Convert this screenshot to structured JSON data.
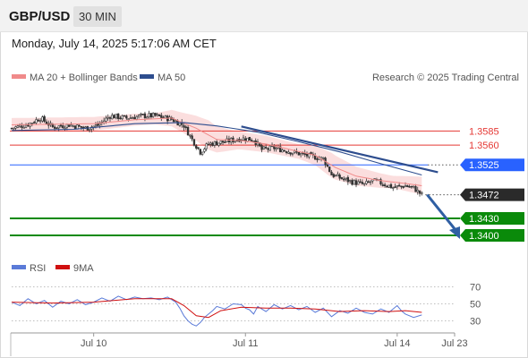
{
  "header": {
    "symbol": "GBP/USD",
    "timeframe": "30 MIN",
    "datetime": "Monday, July 14, 2025 5:17:06 AM CET"
  },
  "colors": {
    "bollinger": "#f08a8a",
    "bollinger_fill": "#fbdede",
    "ma50": "#2d4d8e",
    "resistance": "#e53935",
    "pivot": "#2962ff",
    "support": "#0a8a0a",
    "current": "#2a2a2a",
    "rsi": "#5b7bd8",
    "rsi_ma": "#d01010",
    "candle_up": "#444444",
    "candle_down": "#444444",
    "arrow": "#2f5fa3"
  },
  "chart_data": [
    {
      "type": "candlestick",
      "legend": {
        "ma20": "MA 20 + Bollinger Bands",
        "ma50": "MA 50"
      },
      "credit": "Research © 2025 Trading Central",
      "ylim": [
        1.3365,
        1.3665
      ],
      "x_ticks": [
        "Jul 10",
        "Jul 11",
        "Jul 14",
        "Jul 23"
      ],
      "x_tick_index": [
        40,
        114,
        188,
        216
      ],
      "bars_count": 216,
      "levels": [
        {
          "label": "1.3585",
          "value": 1.3585,
          "kind": "resistance"
        },
        {
          "label": "1.3560",
          "value": 1.356,
          "kind": "resistance"
        },
        {
          "label": "1.3525",
          "value": 1.3525,
          "kind": "pivot"
        },
        {
          "label": "1.3472",
          "value": 1.3472,
          "kind": "current"
        },
        {
          "label": "1.3430",
          "value": 1.343,
          "kind": "support"
        },
        {
          "label": "1.3400",
          "value": 1.34,
          "kind": "support"
        }
      ],
      "trendline": {
        "from": [
          112,
          1.3593
        ],
        "to": [
          200,
          1.3512
        ]
      },
      "forecast_arrow": {
        "from": [
          200,
          1.3472
        ],
        "to": [
          216,
          1.34
        ]
      },
      "price_path": [
        [
          0,
          1.359
        ],
        [
          8,
          1.3597
        ],
        [
          14,
          1.3608
        ],
        [
          20,
          1.3592
        ],
        [
          28,
          1.3596
        ],
        [
          36,
          1.359
        ],
        [
          42,
          1.3595
        ],
        [
          48,
          1.3612
        ],
        [
          56,
          1.3608
        ],
        [
          64,
          1.3612
        ],
        [
          70,
          1.3612
        ],
        [
          78,
          1.3606
        ],
        [
          84,
          1.3595
        ],
        [
          88,
          1.357
        ],
        [
          92,
          1.3548
        ],
        [
          96,
          1.3562
        ],
        [
          104,
          1.3566
        ],
        [
          112,
          1.3572
        ],
        [
          118,
          1.357
        ],
        [
          122,
          1.3552
        ],
        [
          128,
          1.3555
        ],
        [
          134,
          1.355
        ],
        [
          140,
          1.3545
        ],
        [
          146,
          1.354
        ],
        [
          152,
          1.3536
        ],
        [
          156,
          1.3508
        ],
        [
          160,
          1.3502
        ],
        [
          166,
          1.3495
        ],
        [
          172,
          1.349
        ],
        [
          176,
          1.3497
        ],
        [
          180,
          1.3493
        ],
        [
          186,
          1.3485
        ],
        [
          192,
          1.3488
        ],
        [
          196,
          1.3484
        ],
        [
          200,
          1.3472
        ]
      ],
      "ma20_path": [
        [
          0,
          1.3596
        ],
        [
          20,
          1.3597
        ],
        [
          40,
          1.3598
        ],
        [
          60,
          1.3605
        ],
        [
          78,
          1.3608
        ],
        [
          90,
          1.359
        ],
        [
          100,
          1.357
        ],
        [
          112,
          1.3568
        ],
        [
          124,
          1.3562
        ],
        [
          136,
          1.3552
        ],
        [
          148,
          1.3542
        ],
        [
          158,
          1.352
        ],
        [
          168,
          1.3505
        ],
        [
          180,
          1.3497
        ],
        [
          192,
          1.3492
        ],
        [
          200,
          1.3488
        ]
      ],
      "bb_width": [
        [
          0,
          0.0012
        ],
        [
          40,
          0.0012
        ],
        [
          70,
          0.001
        ],
        [
          84,
          0.0018
        ],
        [
          96,
          0.0026
        ],
        [
          110,
          0.0016
        ],
        [
          140,
          0.0013
        ],
        [
          156,
          0.0022
        ],
        [
          170,
          0.0016
        ],
        [
          186,
          0.0011
        ],
        [
          200,
          0.0016
        ]
      ],
      "ma50_path": [
        [
          0,
          1.3586
        ],
        [
          30,
          1.3588
        ],
        [
          60,
          1.3598
        ],
        [
          84,
          1.36
        ],
        [
          100,
          1.3594
        ],
        [
          120,
          1.3583
        ],
        [
          140,
          1.3566
        ],
        [
          160,
          1.3548
        ],
        [
          180,
          1.3527
        ],
        [
          200,
          1.3507
        ]
      ]
    },
    {
      "type": "line",
      "legend": {
        "rsi": "RSI",
        "ma9": "9MA"
      },
      "ylim": [
        20,
        80
      ],
      "y_ticks": [
        "70",
        "50",
        "30"
      ],
      "y_tick_values": [
        70,
        50,
        30
      ],
      "rsi_path": [
        [
          0,
          52
        ],
        [
          4,
          48
        ],
        [
          8,
          56
        ],
        [
          12,
          50
        ],
        [
          16,
          54
        ],
        [
          20,
          46
        ],
        [
          24,
          53
        ],
        [
          28,
          50
        ],
        [
          32,
          55
        ],
        [
          36,
          49
        ],
        [
          40,
          52
        ],
        [
          44,
          57
        ],
        [
          48,
          53
        ],
        [
          52,
          59
        ],
        [
          56,
          55
        ],
        [
          60,
          58
        ],
        [
          64,
          56
        ],
        [
          68,
          57
        ],
        [
          72,
          55
        ],
        [
          76,
          58
        ],
        [
          80,
          52
        ],
        [
          82,
          45
        ],
        [
          84,
          36
        ],
        [
          86,
          30
        ],
        [
          88,
          26
        ],
        [
          90,
          24
        ],
        [
          92,
          28
        ],
        [
          94,
          34
        ],
        [
          96,
          38
        ],
        [
          98,
          42
        ],
        [
          100,
          47
        ],
        [
          104,
          44
        ],
        [
          108,
          50
        ],
        [
          112,
          49
        ],
        [
          114,
          45
        ],
        [
          116,
          43
        ],
        [
          118,
          38
        ],
        [
          120,
          47
        ],
        [
          124,
          41
        ],
        [
          128,
          49
        ],
        [
          132,
          44
        ],
        [
          136,
          48
        ],
        [
          140,
          43
        ],
        [
          144,
          47
        ],
        [
          148,
          40
        ],
        [
          152,
          45
        ],
        [
          156,
          35
        ],
        [
          160,
          42
        ],
        [
          164,
          39
        ],
        [
          168,
          45
        ],
        [
          172,
          40
        ],
        [
          176,
          38
        ],
        [
          180,
          44
        ],
        [
          184,
          40
        ],
        [
          188,
          48
        ],
        [
          190,
          42
        ],
        [
          192,
          38
        ],
        [
          196,
          34
        ],
        [
          200,
          37
        ]
      ],
      "ma9_path": [
        [
          0,
          52
        ],
        [
          20,
          51
        ],
        [
          40,
          52
        ],
        [
          60,
          56
        ],
        [
          78,
          56
        ],
        [
          84,
          48
        ],
        [
          90,
          36
        ],
        [
          96,
          34
        ],
        [
          102,
          42
        ],
        [
          112,
          46
        ],
        [
          124,
          45
        ],
        [
          136,
          45
        ],
        [
          148,
          44
        ],
        [
          160,
          41
        ],
        [
          172,
          42
        ],
        [
          184,
          41
        ],
        [
          192,
          42
        ],
        [
          200,
          40
        ]
      ]
    }
  ]
}
